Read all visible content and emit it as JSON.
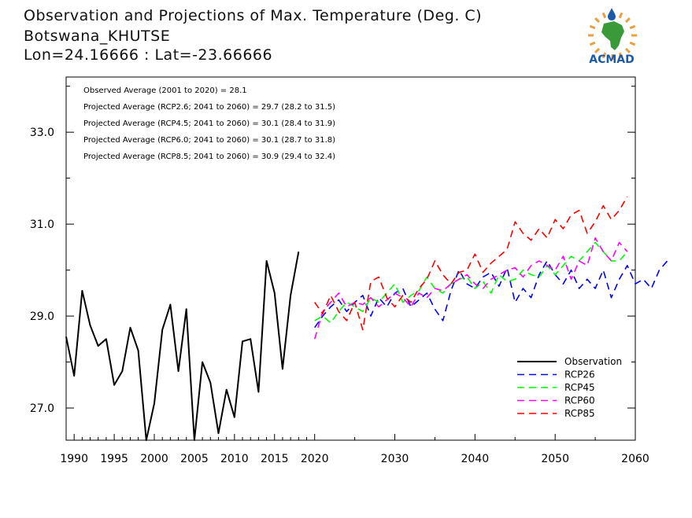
{
  "header": {
    "title": "Observation and Projections of Max. Temperature (Deg. C)",
    "station": "Botswana_KHUTSE",
    "coords": "Lon=24.16666 : Lat=-23.66666"
  },
  "logo": {
    "text": "ACMAD",
    "icon": "acmad-africa-logo-icon"
  },
  "colors": {
    "observation": "#000000",
    "rcp26": "#0000ff",
    "rcp45": "#00ff00",
    "rcp60": "#ff00ff",
    "rcp85": "#ff0000",
    "logo_green": "#3a9a3a",
    "logo_blue": "#1a5aa8",
    "logo_orange": "#e8a040"
  },
  "chart_data": {
    "type": "line",
    "xlim": [
      1989,
      2060
    ],
    "ylim": [
      26.3,
      34.2
    ],
    "x_ticks": [
      1990,
      1995,
      2000,
      2005,
      2010,
      2015,
      2020,
      2030,
      2040,
      2050,
      2060
    ],
    "y_ticks": [
      27.0,
      29.0,
      31.0,
      33.0
    ],
    "y_tick_labels": [
      "27.0",
      "29.0",
      "31.0",
      "33.0"
    ],
    "annotations": [
      "Observed Average (2001 to 2020) = 28.1",
      "Projected Average (RCP2.6; 2041 to 2060) = 29.7 (28.2 to 31.5)",
      "Projected Average (RCP4.5; 2041 to 2060) = 30.1 (28.4 to 31.9)",
      "Projected Average (RCP6.0; 2041 to 2060) = 30.1 (28.7 to 31.8)",
      "Projected Average (RCP8.5; 2041 to 2060) = 30.9 (29.4 to 32.4)"
    ],
    "legend": {
      "position": "bottom-right"
    },
    "series": [
      {
        "name": "Observation",
        "style": "solid",
        "x_start": 1989,
        "values": [
          28.55,
          27.7,
          29.55,
          28.8,
          28.35,
          28.5,
          27.5,
          27.8,
          28.75,
          28.25,
          26.2,
          27.1,
          28.7,
          29.25,
          27.8,
          29.15,
          26.2,
          28.0,
          27.55,
          26.45,
          27.4,
          26.8,
          28.45,
          28.5,
          27.35,
          30.2,
          29.5,
          27.85,
          29.45,
          30.4
        ]
      },
      {
        "name": "RCP26",
        "style": "dashed",
        "x_start": 2020,
        "values": [
          28.75,
          29.0,
          29.2,
          29.35,
          29.1,
          29.3,
          29.45,
          29.0,
          29.4,
          29.2,
          29.5,
          29.6,
          29.2,
          29.35,
          29.5,
          29.15,
          28.9,
          29.55,
          30.0,
          29.7,
          29.6,
          29.85,
          29.95,
          29.65,
          30.05,
          29.3,
          29.6,
          29.4,
          29.9,
          30.2,
          29.9,
          29.7,
          30.0,
          29.6,
          29.8,
          29.6,
          30.0,
          29.4,
          29.8,
          30.1,
          29.7,
          29.8,
          29.6,
          30.0,
          30.2
        ]
      },
      {
        "name": "RCP45",
        "style": "dashed",
        "x_start": 2020,
        "values": [
          28.9,
          29.0,
          28.85,
          29.1,
          29.3,
          29.2,
          29.1,
          29.4,
          29.3,
          29.5,
          29.7,
          29.3,
          29.45,
          29.55,
          29.85,
          29.6,
          29.5,
          29.7,
          29.8,
          29.85,
          29.6,
          29.75,
          29.5,
          29.9,
          29.75,
          29.8,
          30.0,
          29.9,
          29.85,
          30.1,
          29.9,
          30.1,
          30.3,
          30.2,
          30.4,
          30.6,
          30.4,
          30.2,
          30.2,
          30.4
        ]
      },
      {
        "name": "RCP60",
        "style": "dashed",
        "x_start": 2020,
        "values": [
          28.5,
          29.1,
          29.3,
          29.5,
          29.2,
          29.3,
          29.25,
          29.4,
          29.2,
          29.35,
          29.5,
          29.4,
          29.2,
          29.5,
          29.4,
          29.6,
          29.55,
          29.7,
          29.8,
          29.9,
          29.7,
          29.6,
          29.8,
          29.9,
          30.0,
          30.05,
          29.85,
          30.1,
          30.2,
          30.1,
          30.0,
          30.3,
          29.8,
          30.2,
          30.1,
          30.7,
          30.4,
          30.2,
          30.6,
          30.4
        ]
      },
      {
        "name": "RCP85",
        "style": "dashed",
        "x_start": 2020,
        "values": [
          29.3,
          29.05,
          29.45,
          29.1,
          28.9,
          29.3,
          28.7,
          29.75,
          29.85,
          29.4,
          29.2,
          29.45,
          29.3,
          29.6,
          29.8,
          30.2,
          29.9,
          29.7,
          29.95,
          30.0,
          30.35,
          29.95,
          30.15,
          30.3,
          30.45,
          31.05,
          30.8,
          30.65,
          30.9,
          30.7,
          31.1,
          30.9,
          31.2,
          31.3,
          30.8,
          31.05,
          31.4,
          31.1,
          31.3,
          31.6
        ]
      }
    ]
  }
}
